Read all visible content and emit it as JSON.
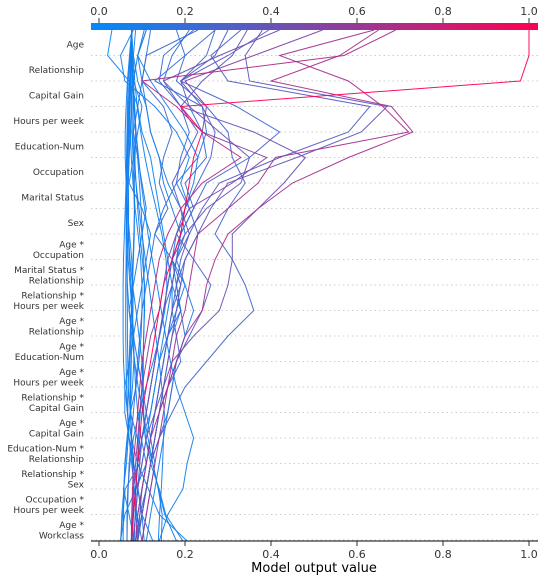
{
  "chart_data": {
    "type": "line",
    "subtype": "shap-decision-plot",
    "xlabel": "Model output value",
    "xlim": [
      -0.02,
      1.02
    ],
    "x_ticks": [
      "0.0",
      "0.2",
      "0.4",
      "0.6",
      "0.8",
      "1.0"
    ],
    "x_tick_values": [
      0,
      0.2,
      0.4,
      0.6,
      0.8,
      1.0
    ],
    "colorbar": {
      "from": "#008bfb",
      "to": "#ff0052",
      "range": [
        0,
        1
      ]
    },
    "grid": "dotted horizontal lines at each feature",
    "features": [
      "Age",
      "Relationship",
      "Capital Gain",
      "Hours per week",
      "Education-Num",
      "Occupation",
      "Marital Status",
      "Sex",
      "Age *\nOccupation",
      "Marital Status *\nRelationship",
      "Relationship *\nHours per week",
      "Age *\nRelationship",
      "Age *\nEducation-Num",
      "Age *\nHours per week",
      "Relationship *\nCapital Gain",
      "Age *\nCapital Gain",
      "Education-Num *\nRelationship",
      "Relationship *\nSex",
      "Occupation *\nHours per week",
      "Age *\nWorkclass"
    ],
    "series": [
      {
        "values": [
          0.076,
          0.074,
          0.072,
          0.071,
          0.074,
          0.07,
          0.068,
          0.069,
          0.068,
          0.066,
          0.065,
          0.066,
          0.066,
          0.067,
          0.068,
          0.073,
          0.089,
          0.095,
          0.061,
          0.055,
          0.05
        ]
      },
      {
        "values": [
          0.076,
          0.076,
          0.078,
          0.079,
          0.08,
          0.083,
          0.086,
          0.09,
          0.095,
          0.101,
          0.106,
          0.106,
          0.104,
          0.103,
          0.103,
          0.104,
          0.108,
          0.125,
          0.138,
          0.153,
          0.18
        ]
      },
      {
        "values": [
          0.076,
          0.077,
          0.078,
          0.081,
          0.085,
          0.084,
          0.082,
          0.083,
          0.081,
          0.079,
          0.077,
          0.075,
          0.072,
          0.07,
          0.068,
          0.067,
          0.068,
          0.064,
          0.057,
          0.07,
          0.082
        ]
      },
      {
        "values": [
          0.076,
          0.074,
          0.072,
          0.07,
          0.068,
          0.066,
          0.064,
          0.066,
          0.069,
          0.071,
          0.074,
          0.077,
          0.08,
          0.082,
          0.085,
          0.09,
          0.098,
          0.11,
          0.086,
          0.06,
          0.05
        ]
      },
      {
        "values": [
          0.076,
          0.075,
          0.073,
          0.072,
          0.071,
          0.07,
          0.068,
          0.068,
          0.068,
          0.072,
          0.078,
          0.086,
          0.093,
          0.1,
          0.102,
          0.102,
          0.108,
          0.12,
          0.14,
          0.155,
          0.195
        ]
      },
      {
        "values": [
          0.076,
          0.074,
          0.072,
          0.07,
          0.069,
          0.068,
          0.066,
          0.065,
          0.064,
          0.063,
          0.062,
          0.062,
          0.062,
          0.063,
          0.064,
          0.066,
          0.07,
          0.076,
          0.082,
          0.088,
          0.1
        ]
      },
      {
        "values": [
          0.076,
          0.071,
          0.066,
          0.063,
          0.061,
          0.061,
          0.063,
          0.066,
          0.071,
          0.076,
          0.079,
          0.079,
          0.077,
          0.075,
          0.074,
          0.074,
          0.076,
          0.081,
          0.091,
          0.1,
          0.125
        ]
      },
      {
        "values": [
          0.076,
          0.072,
          0.068,
          0.066,
          0.065,
          0.064,
          0.063,
          0.061,
          0.059,
          0.057,
          0.056,
          0.056,
          0.056,
          0.057,
          0.06,
          0.066,
          0.075,
          0.09,
          0.115,
          0.14,
          0.205
        ]
      },
      {
        "values": [
          0.076,
          0.077,
          0.079,
          0.082,
          0.086,
          0.092,
          0.098,
          0.106,
          0.114,
          0.124,
          0.135,
          0.145,
          0.155,
          0.166,
          0.18,
          0.2,
          0.22,
          0.205,
          0.195,
          0.16,
          0.14
        ]
      },
      {
        "values": [
          0.076,
          0.074,
          0.073,
          0.072,
          0.073,
          0.075,
          0.079,
          0.084,
          0.091,
          0.097,
          0.1,
          0.1,
          0.098,
          0.093,
          0.086,
          0.073,
          0.066,
          0.061,
          0.058,
          0.053,
          0.051
        ]
      },
      {
        "values": [
          0.076,
          0.074,
          0.072,
          0.07,
          0.068,
          0.066,
          0.064,
          0.063,
          0.063,
          0.064,
          0.066,
          0.07,
          0.076,
          0.083,
          0.091,
          0.102,
          0.114,
          0.125,
          0.138,
          0.147,
          0.145
        ]
      },
      {
        "values": [
          0.076,
          0.079,
          0.083,
          0.089,
          0.097,
          0.107,
          0.119,
          0.133,
          0.146,
          0.156,
          0.158,
          0.153,
          0.141,
          0.126,
          0.109,
          0.093,
          0.08,
          0.072,
          0.067,
          0.065,
          0.065
        ]
      },
      {
        "values": [
          0.076,
          0.075,
          0.074,
          0.075,
          0.077,
          0.081,
          0.086,
          0.093,
          0.1,
          0.108,
          0.116,
          0.124,
          0.132,
          0.14,
          0.146,
          0.152,
          0.15,
          0.148,
          0.145,
          0.141,
          0.138
        ]
      },
      {
        "values": [
          0.076,
          0.073,
          0.071,
          0.068,
          0.066,
          0.065,
          0.064,
          0.064,
          0.065,
          0.068,
          0.072,
          0.077,
          0.081,
          0.081,
          0.078,
          0.072,
          0.065,
          0.06,
          0.058,
          0.057,
          0.056
        ]
      },
      {
        "values": [
          0.076,
          0.078,
          0.08,
          0.083,
          0.086,
          0.09,
          0.094,
          0.098,
          0.101,
          0.104,
          0.105,
          0.105,
          0.104,
          0.102,
          0.1,
          0.096,
          0.092,
          0.089,
          0.086,
          0.084,
          0.082
        ]
      },
      {
        "values": [
          0.076,
          0.075,
          0.075,
          0.076,
          0.077,
          0.079,
          0.081,
          0.082,
          0.082,
          0.08,
          0.078,
          0.076,
          0.074,
          0.072,
          0.072,
          0.073,
          0.075,
          0.078,
          0.082,
          0.086,
          0.09
        ]
      },
      {
        "values": [
          0.03,
          0.02,
          0.07,
          0.09,
          0.1,
          0.12,
          0.13,
          0.14,
          0.15,
          0.16,
          0.17,
          0.17,
          0.16,
          0.15,
          0.14,
          0.13,
          0.12,
          0.11,
          0.1,
          0.09,
          0.085
        ]
      },
      {
        "values": [
          0.085,
          0.08,
          0.09,
          0.11,
          0.12,
          0.14,
          0.15,
          0.17,
          0.19,
          0.18,
          0.17,
          0.16,
          0.15,
          0.14,
          0.13,
          0.12,
          0.11,
          0.1,
          0.09,
          0.085,
          0.08
        ]
      },
      {
        "values": [
          0.105,
          0.09,
          0.08,
          0.1,
          0.09,
          0.08,
          0.07,
          0.1,
          0.12,
          0.11,
          0.1,
          0.09,
          0.08,
          0.07,
          0.06,
          0.06,
          0.07,
          0.08,
          0.09,
          0.1,
          0.105
        ]
      },
      {
        "values": [
          0.12,
          0.11,
          0.1,
          0.09,
          0.08,
          0.09,
          0.1,
          0.11,
          0.1,
          0.09,
          0.08,
          0.07,
          0.08,
          0.09,
          0.1,
          0.11,
          0.12,
          0.13,
          0.12,
          0.11,
          0.1
        ]
      },
      {
        "values": [
          0.11,
          0.09,
          0.1,
          0.11,
          0.12,
          0.14,
          0.16,
          0.19,
          0.2,
          0.18,
          0.2,
          0.22,
          0.2,
          0.18,
          0.17,
          0.16,
          0.15,
          0.14,
          0.13,
          0.12,
          0.11
        ]
      },
      {
        "values": [
          0.21,
          0.17,
          0.15,
          0.21,
          0.24,
          0.25,
          0.2,
          0.22,
          0.19,
          0.18,
          0.17,
          0.19,
          0.16,
          0.15,
          0.14,
          0.13,
          0.12,
          0.11,
          0.1,
          0.09,
          0.085
        ]
      },
      {
        "values": [
          0.08,
          0.05,
          0.06,
          0.13,
          0.18,
          0.21,
          0.19,
          0.21,
          0.18,
          0.17,
          0.2,
          0.18,
          0.16,
          0.14,
          0.13,
          0.12,
          0.1,
          0.09,
          0.08,
          0.08,
          0.075
        ]
      },
      {
        "values": [
          0.11,
          0.09,
          0.12,
          0.16,
          0.2,
          0.23,
          0.22,
          0.2,
          0.19,
          0.17,
          0.18,
          0.19,
          0.17,
          0.16,
          0.15,
          0.14,
          0.13,
          0.12,
          0.11,
          0.1,
          0.09
        ]
      },
      {
        "values": [
          0.23,
          0.11,
          0.1,
          0.15,
          0.17,
          0.15,
          0.14,
          0.16,
          0.13,
          0.17,
          0.19,
          0.17,
          0.18,
          0.19,
          0.16,
          0.14,
          0.13,
          0.12,
          0.11,
          0.095,
          0.085
        ]
      },
      {
        "values": [
          0.22,
          0.15,
          0.14,
          0.19,
          0.21,
          0.19,
          0.18,
          0.21,
          0.23,
          0.2,
          0.18,
          0.19,
          0.2,
          0.18,
          0.17,
          0.16,
          0.14,
          0.12,
          0.11,
          0.1,
          0.09
        ]
      },
      {
        "values": [
          0.27,
          0.2,
          0.18,
          0.25,
          0.3,
          0.31,
          0.34,
          0.3,
          0.27,
          0.31,
          0.34,
          0.36,
          0.3,
          0.25,
          0.2,
          0.17,
          0.14,
          0.12,
          0.11,
          0.1,
          0.085
        ]
      },
      {
        "values": [
          0.3,
          0.27,
          0.19,
          0.24,
          0.27,
          0.26,
          0.23,
          0.2,
          0.18,
          0.22,
          0.26,
          0.24,
          0.21,
          0.18,
          0.16,
          0.14,
          0.13,
          0.12,
          0.11,
          0.1,
          0.09
        ]
      },
      {
        "values": [
          0.345,
          0.31,
          0.24,
          0.19,
          0.23,
          0.2,
          0.17,
          0.19,
          0.21,
          0.18,
          0.17,
          0.15,
          0.14,
          0.13,
          0.12,
          0.11,
          0.1,
          0.09,
          0.085,
          0.08,
          0.075
        ]
      },
      {
        "values": [
          0.395,
          0.3,
          0.19,
          0.21,
          0.28,
          0.35,
          0.33,
          0.25,
          0.2,
          0.17,
          0.16,
          0.15,
          0.14,
          0.13,
          0.12,
          0.11,
          0.1,
          0.09,
          0.085,
          0.08,
          0.078
        ]
      },
      {
        "values": [
          0.42,
          0.28,
          0.15,
          0.19,
          0.36,
          0.48,
          0.43,
          0.37,
          0.31,
          0.31,
          0.3,
          0.28,
          0.22,
          0.17,
          0.15,
          0.13,
          0.11,
          0.1,
          0.09,
          0.085,
          0.08
        ]
      },
      {
        "values": [
          0.52,
          0.36,
          0.2,
          0.25,
          0.24,
          0.39,
          0.31,
          0.21,
          0.18,
          0.16,
          0.15,
          0.14,
          0.12,
          0.11,
          0.1,
          0.095,
          0.09,
          0.085,
          0.08,
          0.078,
          0.075
        ]
      },
      {
        "values": [
          0.69,
          0.57,
          0.1,
          0.18,
          0.24,
          0.33,
          0.24,
          0.19,
          0.16,
          0.14,
          0.13,
          0.12,
          0.11,
          0.1,
          0.095,
          0.09,
          0.085,
          0.08,
          0.078,
          0.076,
          0.075
        ]
      },
      {
        "values": [
          1.0,
          1.0,
          0.98,
          0.19,
          0.24,
          0.22,
          0.21,
          0.2,
          0.19,
          0.17,
          0.15,
          0.14,
          0.13,
          0.12,
          0.11,
          0.1,
          0.095,
          0.09,
          0.085,
          0.08,
          0.075
        ]
      },
      {
        "values": [
          0.65,
          0.56,
          0.4,
          0.68,
          0.73,
          0.58,
          0.45,
          0.37,
          0.3,
          0.27,
          0.25,
          0.24,
          0.2,
          0.18,
          0.16,
          0.14,
          0.12,
          0.11,
          0.1,
          0.09,
          0.085
        ]
      },
      {
        "values": [
          0.64,
          0.42,
          0.58,
          0.66,
          0.72,
          0.41,
          0.37,
          0.3,
          0.23,
          0.22,
          0.21,
          0.2,
          0.18,
          0.17,
          0.16,
          0.15,
          0.14,
          0.13,
          0.12,
          0.11,
          0.1
        ]
      },
      {
        "values": [
          0.38,
          0.34,
          0.35,
          0.67,
          0.61,
          0.46,
          0.3,
          0.26,
          0.23,
          0.2,
          0.19,
          0.18,
          0.17,
          0.16,
          0.15,
          0.14,
          0.13,
          0.12,
          0.11,
          0.1,
          0.09
        ]
      },
      {
        "values": [
          0.33,
          0.26,
          0.3,
          0.63,
          0.58,
          0.42,
          0.28,
          0.24,
          0.21,
          0.19,
          0.18,
          0.17,
          0.16,
          0.15,
          0.14,
          0.13,
          0.12,
          0.11,
          0.1,
          0.095,
          0.09
        ]
      },
      {
        "values": [
          0.27,
          0.25,
          0.19,
          0.32,
          0.42,
          0.35,
          0.25,
          0.22,
          0.19,
          0.17,
          0.16,
          0.15,
          0.14,
          0.13,
          0.12,
          0.11,
          0.1,
          0.095,
          0.09,
          0.085,
          0.08
        ]
      },
      {
        "values": [
          0.18,
          0.2,
          0.13,
          0.24,
          0.25,
          0.23,
          0.18,
          0.15,
          0.13,
          0.12,
          0.11,
          0.1,
          0.095,
          0.09,
          0.085,
          0.08,
          0.075,
          0.07,
          0.068,
          0.066,
          0.065
        ]
      }
    ]
  }
}
